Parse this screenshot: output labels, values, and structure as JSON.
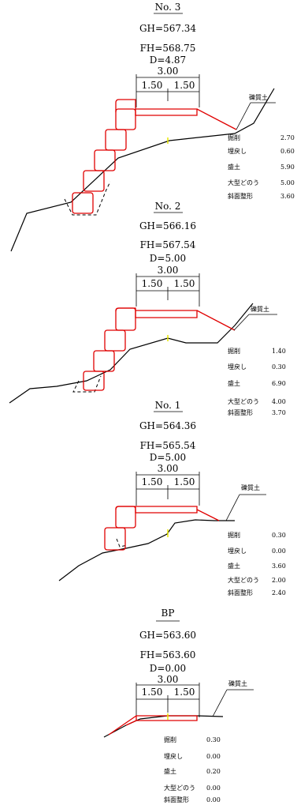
{
  "sections": [
    {
      "id": "No.3",
      "name": "No. 3",
      "gh": "GH=567.34",
      "fh": "FH=568.75",
      "d": "D=4.87",
      "width_total": "3.00",
      "width_left": "1.50",
      "width_right": "1.50",
      "soil": "礫質土",
      "quantities": [
        {
          "label": "掘削",
          "value": "2.70"
        },
        {
          "label": "埋戻し",
          "value": "0.60"
        },
        {
          "label": "盛土",
          "value": "5.90"
        },
        {
          "label": "大型どのう",
          "value": "5.00"
        },
        {
          "label": "斜面整形",
          "value": "3.60"
        }
      ]
    },
    {
      "id": "No.2",
      "name": "No. 2",
      "gh": "GH=566.16",
      "fh": "FH=567.54",
      "d": "D=5.00",
      "width_total": "3.00",
      "width_left": "1.50",
      "width_right": "1.50",
      "soil": "礫質土",
      "quantities": [
        {
          "label": "掘削",
          "value": "1.40"
        },
        {
          "label": "埋戻し",
          "value": "0.30"
        },
        {
          "label": "盛土",
          "value": "6.90"
        },
        {
          "label": "大型どのう",
          "value": "4.00"
        },
        {
          "label": "斜面整形",
          "value": "3.70"
        }
      ]
    },
    {
      "id": "No.1",
      "name": "No. 1",
      "gh": "GH=564.36",
      "fh": "FH=565.54",
      "d": "D=5.00",
      "width_total": "3.00",
      "width_left": "1.50",
      "width_right": "1.50",
      "soil": "礫質土",
      "quantities": [
        {
          "label": "掘削",
          "value": "0.30"
        },
        {
          "label": "埋戻し",
          "value": "0.00"
        },
        {
          "label": "盛土",
          "value": "3.60"
        },
        {
          "label": "大型どのう",
          "value": "2.00"
        },
        {
          "label": "斜面整形",
          "value": "2.40"
        }
      ]
    },
    {
      "id": "BP",
      "name": "BP",
      "gh": "GH=563.60",
      "fh": "FH=563.60",
      "d": "D=0.00",
      "width_total": "3.00",
      "width_left": "1.50",
      "width_right": "1.50",
      "soil": "礫質土",
      "quantities": [
        {
          "label": "掘削",
          "value": "0.30"
        },
        {
          "label": "埋戻し",
          "value": "0.00"
        },
        {
          "label": "盛土",
          "value": "0.20"
        },
        {
          "label": "大型どのう",
          "value": "0.00"
        },
        {
          "label": "斜面整形",
          "value": "0.00"
        }
      ]
    }
  ],
  "colors": {
    "design_line": "#e00000",
    "centerline_marker": "#e8e800",
    "ground_line": "#000000"
  }
}
